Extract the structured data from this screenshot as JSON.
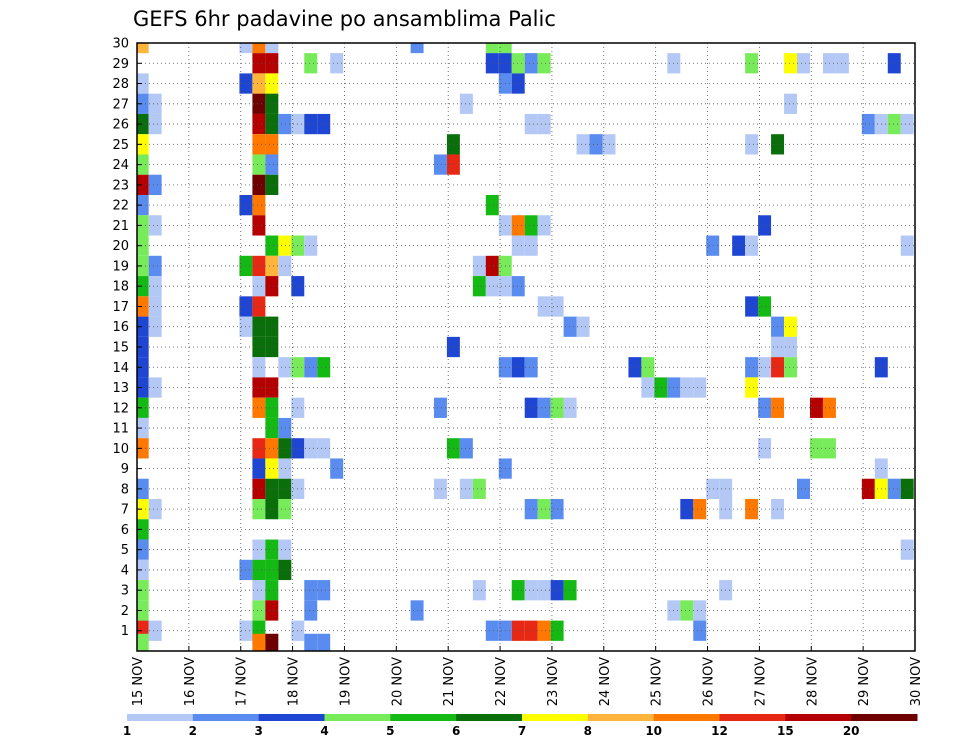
{
  "chart_data": {
    "type": "heatmap",
    "title": "GEFS 6hr padavine po ansamblima Palic",
    "x_labels": [
      "15 NOV",
      "16 NOV",
      "17 NOV",
      "18 NOV",
      "19 NOV",
      "20 NOV",
      "21 NOV",
      "22 NOV",
      "23 NOV",
      "24 NOV",
      "25 NOV",
      "26 NOV",
      "27 NOV",
      "28 NOV",
      "29 NOV",
      "30 NOV"
    ],
    "y_labels": [
      "1",
      "2",
      "3",
      "4",
      "5",
      "6",
      "7",
      "8",
      "9",
      "10",
      "11",
      "12",
      "13",
      "14",
      "15",
      "16",
      "17",
      "18",
      "19",
      "20",
      "21",
      "22",
      "23",
      "24",
      "25",
      "26",
      "27",
      "28",
      "29",
      "30"
    ],
    "xlim": [
      0,
      15
    ],
    "ylim": [
      0,
      30
    ],
    "grid": true,
    "colorbar": {
      "labels": [
        "1",
        "2",
        "3",
        "4",
        "5",
        "6",
        "7",
        "8",
        "10",
        "12",
        "15",
        "20"
      ],
      "colors": [
        "#b4c8f5",
        "#5a8cf0",
        "#1e46d2",
        "#78eb5a",
        "#14b914",
        "#0a6e0a",
        "#ffff00",
        "#ffb43c",
        "#ff7800",
        "#e62814",
        "#b40000",
        "#6e0000"
      ]
    },
    "cells": [
      {
        "x": 0.1,
        "y": 30,
        "v": 8
      },
      {
        "x": 2.1,
        "y": 30,
        "v": 1
      },
      {
        "x": 2.35,
        "y": 30,
        "v": 10
      },
      {
        "x": 2.6,
        "y": 30,
        "v": 1
      },
      {
        "x": 5.4,
        "y": 30,
        "v": 2
      },
      {
        "x": 6.85,
        "y": 30,
        "v": 4
      },
      {
        "x": 7.1,
        "y": 30,
        "v": 4
      },
      {
        "x": 2.35,
        "y": 29,
        "v": 15
      },
      {
        "x": 2.6,
        "y": 29,
        "v": 15
      },
      {
        "x": 3.35,
        "y": 29,
        "v": 4
      },
      {
        "x": 3.85,
        "y": 29,
        "v": 1
      },
      {
        "x": 6.85,
        "y": 29,
        "v": 3
      },
      {
        "x": 7.1,
        "y": 29,
        "v": 3
      },
      {
        "x": 7.35,
        "y": 29,
        "v": 4
      },
      {
        "x": 7.6,
        "y": 29,
        "v": 2
      },
      {
        "x": 7.85,
        "y": 29,
        "v": 4
      },
      {
        "x": 10.35,
        "y": 29,
        "v": 1
      },
      {
        "x": 11.85,
        "y": 29,
        "v": 4
      },
      {
        "x": 12.6,
        "y": 29,
        "v": 7
      },
      {
        "x": 12.85,
        "y": 29,
        "v": 1
      },
      {
        "x": 13.35,
        "y": 29,
        "v": 1
      },
      {
        "x": 13.6,
        "y": 29,
        "v": 1
      },
      {
        "x": 14.6,
        "y": 29,
        "v": 3
      },
      {
        "x": 0.1,
        "y": 28,
        "v": 1
      },
      {
        "x": 2.1,
        "y": 28,
        "v": 3
      },
      {
        "x": 2.35,
        "y": 28,
        "v": 8
      },
      {
        "x": 2.6,
        "y": 28,
        "v": 7
      },
      {
        "x": 7.1,
        "y": 28,
        "v": 2
      },
      {
        "x": 7.35,
        "y": 28,
        "v": 3
      },
      {
        "x": 0.1,
        "y": 27,
        "v": 2
      },
      {
        "x": 0.35,
        "y": 27,
        "v": 1
      },
      {
        "x": 2.35,
        "y": 27,
        "v": 20
      },
      {
        "x": 2.6,
        "y": 27,
        "v": 6
      },
      {
        "x": 6.35,
        "y": 27,
        "v": 1
      },
      {
        "x": 12.6,
        "y": 27,
        "v": 1
      },
      {
        "x": 0.1,
        "y": 26,
        "v": 6
      },
      {
        "x": 0.35,
        "y": 26,
        "v": 1
      },
      {
        "x": 2.35,
        "y": 26,
        "v": 15
      },
      {
        "x": 2.6,
        "y": 26,
        "v": 6
      },
      {
        "x": 2.85,
        "y": 26,
        "v": 2
      },
      {
        "x": 3.1,
        "y": 26,
        "v": 1
      },
      {
        "x": 3.35,
        "y": 26,
        "v": 3
      },
      {
        "x": 3.6,
        "y": 26,
        "v": 3
      },
      {
        "x": 7.6,
        "y": 26,
        "v": 1
      },
      {
        "x": 7.85,
        "y": 26,
        "v": 1
      },
      {
        "x": 14.1,
        "y": 26,
        "v": 2
      },
      {
        "x": 14.35,
        "y": 26,
        "v": 1
      },
      {
        "x": 14.6,
        "y": 26,
        "v": 4
      },
      {
        "x": 14.85,
        "y": 26,
        "v": 1
      },
      {
        "x": 0.1,
        "y": 25,
        "v": 7
      },
      {
        "x": 2.35,
        "y": 25,
        "v": 10
      },
      {
        "x": 2.6,
        "y": 25,
        "v": 10
      },
      {
        "x": 6.1,
        "y": 25,
        "v": 6
      },
      {
        "x": 8.6,
        "y": 25,
        "v": 1
      },
      {
        "x": 8.85,
        "y": 25,
        "v": 2
      },
      {
        "x": 9.1,
        "y": 25,
        "v": 1
      },
      {
        "x": 11.85,
        "y": 25,
        "v": 1
      },
      {
        "x": 12.35,
        "y": 25,
        "v": 6
      },
      {
        "x": 0.1,
        "y": 24,
        "v": 4
      },
      {
        "x": 2.35,
        "y": 24,
        "v": 4
      },
      {
        "x": 2.6,
        "y": 24,
        "v": 2
      },
      {
        "x": 5.85,
        "y": 24,
        "v": 2
      },
      {
        "x": 6.1,
        "y": 24,
        "v": 12
      },
      {
        "x": 0.1,
        "y": 23,
        "v": 15
      },
      {
        "x": 0.35,
        "y": 23,
        "v": 2
      },
      {
        "x": 2.35,
        "y": 23,
        "v": 20
      },
      {
        "x": 2.6,
        "y": 23,
        "v": 6
      },
      {
        "x": 0.1,
        "y": 22,
        "v": 2
      },
      {
        "x": 2.1,
        "y": 22,
        "v": 3
      },
      {
        "x": 2.35,
        "y": 22,
        "v": 10
      },
      {
        "x": 6.85,
        "y": 22,
        "v": 5
      },
      {
        "x": 0.1,
        "y": 21,
        "v": 4
      },
      {
        "x": 0.35,
        "y": 21,
        "v": 1
      },
      {
        "x": 2.35,
        "y": 21,
        "v": 15
      },
      {
        "x": 7.1,
        "y": 21,
        "v": 1
      },
      {
        "x": 7.35,
        "y": 21,
        "v": 10
      },
      {
        "x": 7.6,
        "y": 21,
        "v": 5
      },
      {
        "x": 7.85,
        "y": 21,
        "v": 1
      },
      {
        "x": 12.1,
        "y": 21,
        "v": 3
      },
      {
        "x": 0.1,
        "y": 20,
        "v": 4
      },
      {
        "x": 2.6,
        "y": 20,
        "v": 5
      },
      {
        "x": 2.85,
        "y": 20,
        "v": 7
      },
      {
        "x": 3.1,
        "y": 20,
        "v": 4
      },
      {
        "x": 3.35,
        "y": 20,
        "v": 1
      },
      {
        "x": 7.35,
        "y": 20,
        "v": 1
      },
      {
        "x": 7.6,
        "y": 20,
        "v": 1
      },
      {
        "x": 11.1,
        "y": 20,
        "v": 2
      },
      {
        "x": 11.6,
        "y": 20,
        "v": 3
      },
      {
        "x": 11.85,
        "y": 20,
        "v": 1
      },
      {
        "x": 14.85,
        "y": 20,
        "v": 1
      },
      {
        "x": 0.1,
        "y": 19,
        "v": 4
      },
      {
        "x": 0.35,
        "y": 19,
        "v": 2
      },
      {
        "x": 2.1,
        "y": 19,
        "v": 5
      },
      {
        "x": 2.35,
        "y": 19,
        "v": 12
      },
      {
        "x": 2.6,
        "y": 19,
        "v": 8
      },
      {
        "x": 2.85,
        "y": 19,
        "v": 1
      },
      {
        "x": 6.6,
        "y": 19,
        "v": 1
      },
      {
        "x": 6.85,
        "y": 19,
        "v": 15
      },
      {
        "x": 7.1,
        "y": 19,
        "v": 4
      },
      {
        "x": 0.1,
        "y": 18,
        "v": 5
      },
      {
        "x": 0.35,
        "y": 18,
        "v": 1
      },
      {
        "x": 2.35,
        "y": 18,
        "v": 1
      },
      {
        "x": 2.6,
        "y": 18,
        "v": 15
      },
      {
        "x": 3.1,
        "y": 18,
        "v": 3
      },
      {
        "x": 6.6,
        "y": 18,
        "v": 5
      },
      {
        "x": 6.85,
        "y": 18,
        "v": 1
      },
      {
        "x": 7.1,
        "y": 18,
        "v": 1
      },
      {
        "x": 7.35,
        "y": 18,
        "v": 2
      },
      {
        "x": 0.1,
        "y": 17,
        "v": 10
      },
      {
        "x": 0.35,
        "y": 17,
        "v": 1
      },
      {
        "x": 2.1,
        "y": 17,
        "v": 3
      },
      {
        "x": 2.35,
        "y": 17,
        "v": 12
      },
      {
        "x": 7.85,
        "y": 17,
        "v": 1
      },
      {
        "x": 8.1,
        "y": 17,
        "v": 1
      },
      {
        "x": 11.85,
        "y": 17,
        "v": 3
      },
      {
        "x": 12.1,
        "y": 17,
        "v": 5
      },
      {
        "x": 0.1,
        "y": 16,
        "v": 3
      },
      {
        "x": 0.35,
        "y": 16,
        "v": 1
      },
      {
        "x": 2.1,
        "y": 16,
        "v": 1
      },
      {
        "x": 2.35,
        "y": 16,
        "v": 6
      },
      {
        "x": 2.6,
        "y": 16,
        "v": 6
      },
      {
        "x": 8.35,
        "y": 16,
        "v": 2
      },
      {
        "x": 8.6,
        "y": 16,
        "v": 1
      },
      {
        "x": 12.35,
        "y": 16,
        "v": 2
      },
      {
        "x": 12.6,
        "y": 16,
        "v": 7
      },
      {
        "x": 0.1,
        "y": 15,
        "v": 3
      },
      {
        "x": 2.35,
        "y": 15,
        "v": 6
      },
      {
        "x": 2.6,
        "y": 15,
        "v": 6
      },
      {
        "x": 6.1,
        "y": 15,
        "v": 3
      },
      {
        "x": 12.35,
        "y": 15,
        "v": 1
      },
      {
        "x": 12.6,
        "y": 15,
        "v": 1
      },
      {
        "x": 0.1,
        "y": 14,
        "v": 3
      },
      {
        "x": 2.35,
        "y": 14,
        "v": 1
      },
      {
        "x": 2.85,
        "y": 14,
        "v": 1
      },
      {
        "x": 3.1,
        "y": 14,
        "v": 4
      },
      {
        "x": 3.35,
        "y": 14,
        "v": 2
      },
      {
        "x": 3.6,
        "y": 14,
        "v": 5
      },
      {
        "x": 7.1,
        "y": 14,
        "v": 2
      },
      {
        "x": 7.35,
        "y": 14,
        "v": 3
      },
      {
        "x": 7.6,
        "y": 14,
        "v": 2
      },
      {
        "x": 9.6,
        "y": 14,
        "v": 3
      },
      {
        "x": 9.85,
        "y": 14,
        "v": 4
      },
      {
        "x": 11.85,
        "y": 14,
        "v": 2
      },
      {
        "x": 12.1,
        "y": 14,
        "v": 1
      },
      {
        "x": 12.35,
        "y": 14,
        "v": 12
      },
      {
        "x": 12.6,
        "y": 14,
        "v": 4
      },
      {
        "x": 14.35,
        "y": 14,
        "v": 3
      },
      {
        "x": 0.1,
        "y": 13,
        "v": 3
      },
      {
        "x": 0.35,
        "y": 13,
        "v": 1
      },
      {
        "x": 2.35,
        "y": 13,
        "v": 15
      },
      {
        "x": 2.6,
        "y": 13,
        "v": 15
      },
      {
        "x": 9.85,
        "y": 13,
        "v": 1
      },
      {
        "x": 10.1,
        "y": 13,
        "v": 5
      },
      {
        "x": 10.35,
        "y": 13,
        "v": 2
      },
      {
        "x": 10.6,
        "y": 13,
        "v": 1
      },
      {
        "x": 10.85,
        "y": 13,
        "v": 1
      },
      {
        "x": 11.85,
        "y": 13,
        "v": 7
      },
      {
        "x": 0.1,
        "y": 12,
        "v": 5
      },
      {
        "x": 2.35,
        "y": 12,
        "v": 10
      },
      {
        "x": 2.6,
        "y": 12,
        "v": 5
      },
      {
        "x": 3.1,
        "y": 12,
        "v": 1
      },
      {
        "x": 5.85,
        "y": 12,
        "v": 2
      },
      {
        "x": 7.6,
        "y": 12,
        "v": 3
      },
      {
        "x": 7.85,
        "y": 12,
        "v": 2
      },
      {
        "x": 8.1,
        "y": 12,
        "v": 4
      },
      {
        "x": 8.35,
        "y": 12,
        "v": 1
      },
      {
        "x": 12.1,
        "y": 12,
        "v": 2
      },
      {
        "x": 12.35,
        "y": 12,
        "v": 10
      },
      {
        "x": 13.1,
        "y": 12,
        "v": 15
      },
      {
        "x": 13.35,
        "y": 12,
        "v": 10
      },
      {
        "x": 0.1,
        "y": 11,
        "v": 1
      },
      {
        "x": 2.6,
        "y": 11,
        "v": 5
      },
      {
        "x": 2.85,
        "y": 11,
        "v": 2
      },
      {
        "x": 0.1,
        "y": 10,
        "v": 10
      },
      {
        "x": 2.35,
        "y": 10,
        "v": 12
      },
      {
        "x": 2.6,
        "y": 10,
        "v": 10
      },
      {
        "x": 2.85,
        "y": 10,
        "v": 6
      },
      {
        "x": 3.1,
        "y": 10,
        "v": 3
      },
      {
        "x": 3.35,
        "y": 10,
        "v": 1
      },
      {
        "x": 3.6,
        "y": 10,
        "v": 1
      },
      {
        "x": 6.1,
        "y": 10,
        "v": 5
      },
      {
        "x": 6.35,
        "y": 10,
        "v": 2
      },
      {
        "x": 12.1,
        "y": 10,
        "v": 1
      },
      {
        "x": 13.1,
        "y": 10,
        "v": 4
      },
      {
        "x": 13.35,
        "y": 10,
        "v": 4
      },
      {
        "x": 2.35,
        "y": 9,
        "v": 3
      },
      {
        "x": 2.6,
        "y": 9,
        "v": 7
      },
      {
        "x": 2.85,
        "y": 9,
        "v": 1
      },
      {
        "x": 3.85,
        "y": 9,
        "v": 2
      },
      {
        "x": 7.1,
        "y": 9,
        "v": 2
      },
      {
        "x": 14.35,
        "y": 9,
        "v": 1
      },
      {
        "x": 0.1,
        "y": 8,
        "v": 2
      },
      {
        "x": 2.35,
        "y": 8,
        "v": 15
      },
      {
        "x": 2.6,
        "y": 8,
        "v": 6
      },
      {
        "x": 2.85,
        "y": 8,
        "v": 6
      },
      {
        "x": 3.1,
        "y": 8,
        "v": 1
      },
      {
        "x": 5.85,
        "y": 8,
        "v": 1
      },
      {
        "x": 6.35,
        "y": 8,
        "v": 1
      },
      {
        "x": 6.6,
        "y": 8,
        "v": 4
      },
      {
        "x": 11.1,
        "y": 8,
        "v": 1
      },
      {
        "x": 11.35,
        "y": 8,
        "v": 1
      },
      {
        "x": 12.85,
        "y": 8,
        "v": 2
      },
      {
        "x": 14.1,
        "y": 8,
        "v": 15
      },
      {
        "x": 14.35,
        "y": 8,
        "v": 7
      },
      {
        "x": 14.6,
        "y": 8,
        "v": 2
      },
      {
        "x": 14.85,
        "y": 8,
        "v": 6
      },
      {
        "x": 0.1,
        "y": 7,
        "v": 7
      },
      {
        "x": 0.35,
        "y": 7,
        "v": 1
      },
      {
        "x": 2.35,
        "y": 7,
        "v": 4
      },
      {
        "x": 2.6,
        "y": 7,
        "v": 6
      },
      {
        "x": 2.85,
        "y": 7,
        "v": 4
      },
      {
        "x": 7.6,
        "y": 7,
        "v": 2
      },
      {
        "x": 7.85,
        "y": 7,
        "v": 4
      },
      {
        "x": 8.1,
        "y": 7,
        "v": 2
      },
      {
        "x": 10.6,
        "y": 7,
        "v": 3
      },
      {
        "x": 10.85,
        "y": 7,
        "v": 10
      },
      {
        "x": 11.35,
        "y": 7,
        "v": 1
      },
      {
        "x": 11.85,
        "y": 7,
        "v": 10
      },
      {
        "x": 12.35,
        "y": 7,
        "v": 1
      },
      {
        "x": 0.1,
        "y": 6,
        "v": 5
      },
      {
        "x": 0.1,
        "y": 5,
        "v": 2
      },
      {
        "x": 2.35,
        "y": 5,
        "v": 1
      },
      {
        "x": 2.6,
        "y": 5,
        "v": 5
      },
      {
        "x": 2.85,
        "y": 5,
        "v": 1
      },
      {
        "x": 14.85,
        "y": 5,
        "v": 1
      },
      {
        "x": 0.1,
        "y": 4,
        "v": 1
      },
      {
        "x": 2.1,
        "y": 4,
        "v": 2
      },
      {
        "x": 2.35,
        "y": 4,
        "v": 5
      },
      {
        "x": 2.6,
        "y": 4,
        "v": 5
      },
      {
        "x": 2.85,
        "y": 4,
        "v": 6
      },
      {
        "x": 0.1,
        "y": 3,
        "v": 4
      },
      {
        "x": 2.35,
        "y": 3,
        "v": 1
      },
      {
        "x": 2.6,
        "y": 3,
        "v": 5
      },
      {
        "x": 3.35,
        "y": 3,
        "v": 2
      },
      {
        "x": 3.6,
        "y": 3,
        "v": 2
      },
      {
        "x": 6.6,
        "y": 3,
        "v": 1
      },
      {
        "x": 7.35,
        "y": 3,
        "v": 5
      },
      {
        "x": 7.6,
        "y": 3,
        "v": 1
      },
      {
        "x": 7.85,
        "y": 3,
        "v": 1
      },
      {
        "x": 8.1,
        "y": 3,
        "v": 3
      },
      {
        "x": 8.35,
        "y": 3,
        "v": 5
      },
      {
        "x": 11.35,
        "y": 3,
        "v": 1
      },
      {
        "x": 0.1,
        "y": 2,
        "v": 4
      },
      {
        "x": 2.35,
        "y": 2,
        "v": 4
      },
      {
        "x": 2.6,
        "y": 2,
        "v": 15
      },
      {
        "x": 3.35,
        "y": 2,
        "v": 2
      },
      {
        "x": 5.4,
        "y": 2,
        "v": 2
      },
      {
        "x": 10.35,
        "y": 2,
        "v": 1
      },
      {
        "x": 10.6,
        "y": 2,
        "v": 4
      },
      {
        "x": 10.85,
        "y": 2,
        "v": 1
      },
      {
        "x": 0.1,
        "y": 1,
        "v": 12
      },
      {
        "x": 0.35,
        "y": 1,
        "v": 1
      },
      {
        "x": 2.1,
        "y": 1,
        "v": 1
      },
      {
        "x": 2.35,
        "y": 1,
        "v": 5
      },
      {
        "x": 3.1,
        "y": 1,
        "v": 1
      },
      {
        "x": 6.85,
        "y": 1,
        "v": 2
      },
      {
        "x": 7.1,
        "y": 1,
        "v": 2
      },
      {
        "x": 7.35,
        "y": 1,
        "v": 12
      },
      {
        "x": 7.6,
        "y": 1,
        "v": 12
      },
      {
        "x": 7.85,
        "y": 1,
        "v": 10
      },
      {
        "x": 8.1,
        "y": 1,
        "v": 5
      },
      {
        "x": 10.85,
        "y": 1,
        "v": 2
      },
      {
        "x": 0.1,
        "y": 0.35,
        "v": 4
      },
      {
        "x": 2.35,
        "y": 0.35,
        "v": 10
      },
      {
        "x": 2.6,
        "y": 0.35,
        "v": 20
      },
      {
        "x": 3.35,
        "y": 0.35,
        "v": 2
      },
      {
        "x": 3.6,
        "y": 0.35,
        "v": 2
      }
    ]
  }
}
